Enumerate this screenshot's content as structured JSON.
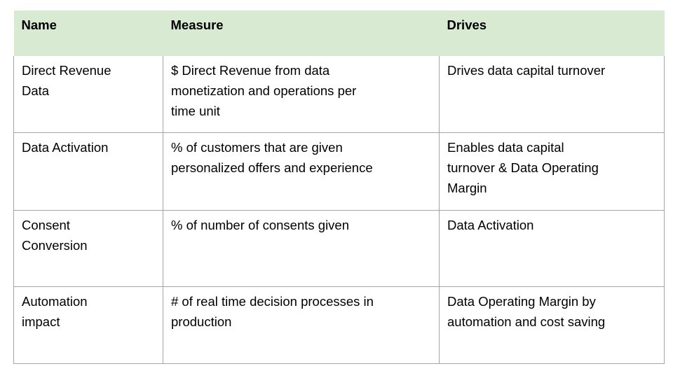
{
  "colors": {
    "header_bg": "#d9ead3",
    "border": "#a6a6a6",
    "text": "#000000",
    "page_bg": "#ffffff"
  },
  "table": {
    "columns": [
      {
        "label": "Name"
      },
      {
        "label": "Measure"
      },
      {
        "label": "Drives"
      }
    ],
    "rows": [
      {
        "name": "Direct Revenue\nData",
        "measure": "$ Direct Revenue from data\nmonetization and operations per\ntime unit",
        "drives": "Drives data capital turnover"
      },
      {
        "name": "Data Activation",
        "measure": "% of customers that are given\npersonalized offers and experience",
        "drives": "Enables data capital\nturnover & Data Operating\nMargin"
      },
      {
        "name": "Consent\nConversion",
        "measure": "% of number of consents given",
        "drives": "Data Activation"
      },
      {
        "name": "Automation\nimpact",
        "measure": "# of real time decision processes in\nproduction",
        "drives": "Data Operating Margin by\nautomation and cost saving"
      }
    ]
  }
}
